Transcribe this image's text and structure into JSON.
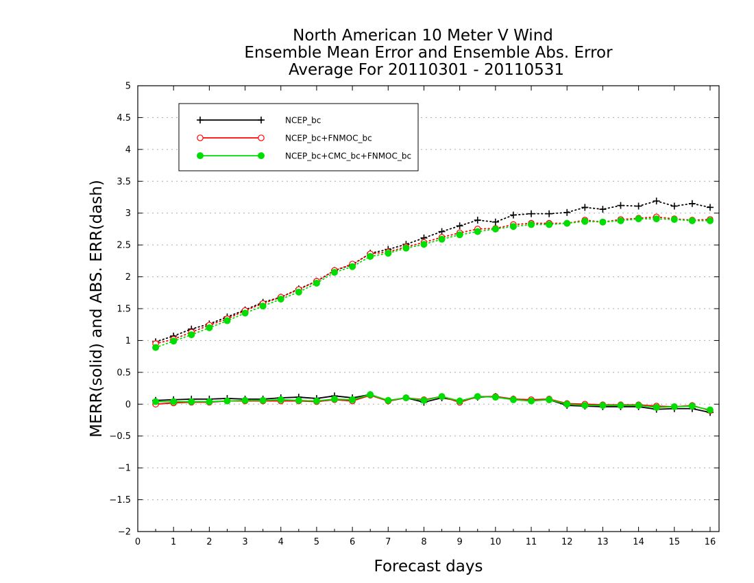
{
  "chart_data": {
    "type": "line",
    "title_lines": [
      "North American 10 Meter V Wind",
      "Ensemble Mean Error and Ensemble Abs. Error",
      "Average For 20110301 - 20110531"
    ],
    "xlabel": "Forecast days",
    "ylabel": "MERR(solid) and ABS. ERR(dash)",
    "xlim": [
      0,
      16.25
    ],
    "ylim": [
      -2,
      5
    ],
    "x_ticks": [
      "0",
      "1",
      "2",
      "3",
      "4",
      "5",
      "6",
      "7",
      "8",
      "9",
      "10",
      "11",
      "12",
      "13",
      "14",
      "15",
      "16"
    ],
    "y_ticks": [
      "−2",
      "−1.5",
      "−1",
      "−0.5",
      "0",
      "0.5",
      "1",
      "1.5",
      "2",
      "2.5",
      "3",
      "3.5",
      "4",
      "4.5",
      "5"
    ],
    "grid": true,
    "legend_position": "top-left",
    "x": [
      0.5,
      1,
      1.5,
      2,
      2.5,
      3,
      3.5,
      4,
      4.5,
      5,
      5.5,
      6,
      6.5,
      7,
      7.5,
      8,
      8.5,
      9,
      9.5,
      10,
      10.5,
      11,
      11.5,
      12,
      12.5,
      13,
      13.5,
      14,
      14.5,
      15,
      15.5,
      16
    ],
    "series": [
      {
        "name": "NCEP_bc",
        "color": "#000000",
        "marker": "plus",
        "merr": [
          0.06,
          0.07,
          0.08,
          0.08,
          0.09,
          0.08,
          0.08,
          0.1,
          0.11,
          0.09,
          0.13,
          0.1,
          0.15,
          0.05,
          0.1,
          0.03,
          0.1,
          0.05,
          0.11,
          0.12,
          0.08,
          0.06,
          0.07,
          -0.02,
          -0.03,
          -0.04,
          -0.04,
          -0.04,
          -0.08,
          -0.07,
          -0.07,
          -0.13
        ],
        "abs_err": [
          0.98,
          1.07,
          1.18,
          1.26,
          1.37,
          1.48,
          1.6,
          1.68,
          1.81,
          1.93,
          2.1,
          2.19,
          2.37,
          2.43,
          2.51,
          2.61,
          2.71,
          2.8,
          2.89,
          2.86,
          2.97,
          2.99,
          2.99,
          3.01,
          3.09,
          3.06,
          3.12,
          3.11,
          3.19,
          3.11,
          3.15,
          3.09
        ]
      },
      {
        "name": "NCEP_bc+FNMOC_bc",
        "color": "#ff0000",
        "marker": "open-circle",
        "merr": [
          0.0,
          0.02,
          0.03,
          0.03,
          0.05,
          0.05,
          0.05,
          0.05,
          0.05,
          0.04,
          0.07,
          0.05,
          0.14,
          0.05,
          0.1,
          0.07,
          0.12,
          0.03,
          0.12,
          0.12,
          0.08,
          0.07,
          0.08,
          0.01,
          0.0,
          -0.01,
          -0.01,
          -0.01,
          -0.03,
          -0.04,
          -0.02,
          -0.1
        ],
        "abs_err": [
          0.95,
          1.02,
          1.13,
          1.24,
          1.34,
          1.47,
          1.58,
          1.68,
          1.8,
          1.93,
          2.1,
          2.2,
          2.36,
          2.39,
          2.47,
          2.54,
          2.62,
          2.69,
          2.75,
          2.76,
          2.82,
          2.84,
          2.84,
          2.84,
          2.89,
          2.86,
          2.9,
          2.92,
          2.94,
          2.91,
          2.89,
          2.9
        ]
      },
      {
        "name": "NCEP_bc+CMC_bc+FNMOC_bc",
        "color": "#00dd00",
        "marker": "filled-circle",
        "merr": [
          0.04,
          0.04,
          0.04,
          0.04,
          0.05,
          0.06,
          0.06,
          0.07,
          0.06,
          0.05,
          0.08,
          0.07,
          0.15,
          0.06,
          0.1,
          0.06,
          0.12,
          0.05,
          0.12,
          0.11,
          0.07,
          0.05,
          0.07,
          0.0,
          -0.02,
          -0.02,
          -0.02,
          -0.02,
          -0.05,
          -0.04,
          -0.03,
          -0.09
        ],
        "abs_err": [
          0.89,
          0.99,
          1.09,
          1.2,
          1.31,
          1.43,
          1.54,
          1.65,
          1.76,
          1.9,
          2.07,
          2.16,
          2.32,
          2.37,
          2.45,
          2.51,
          2.59,
          2.66,
          2.71,
          2.75,
          2.79,
          2.82,
          2.82,
          2.84,
          2.87,
          2.86,
          2.88,
          2.91,
          2.91,
          2.9,
          2.88,
          2.88
        ]
      }
    ]
  }
}
